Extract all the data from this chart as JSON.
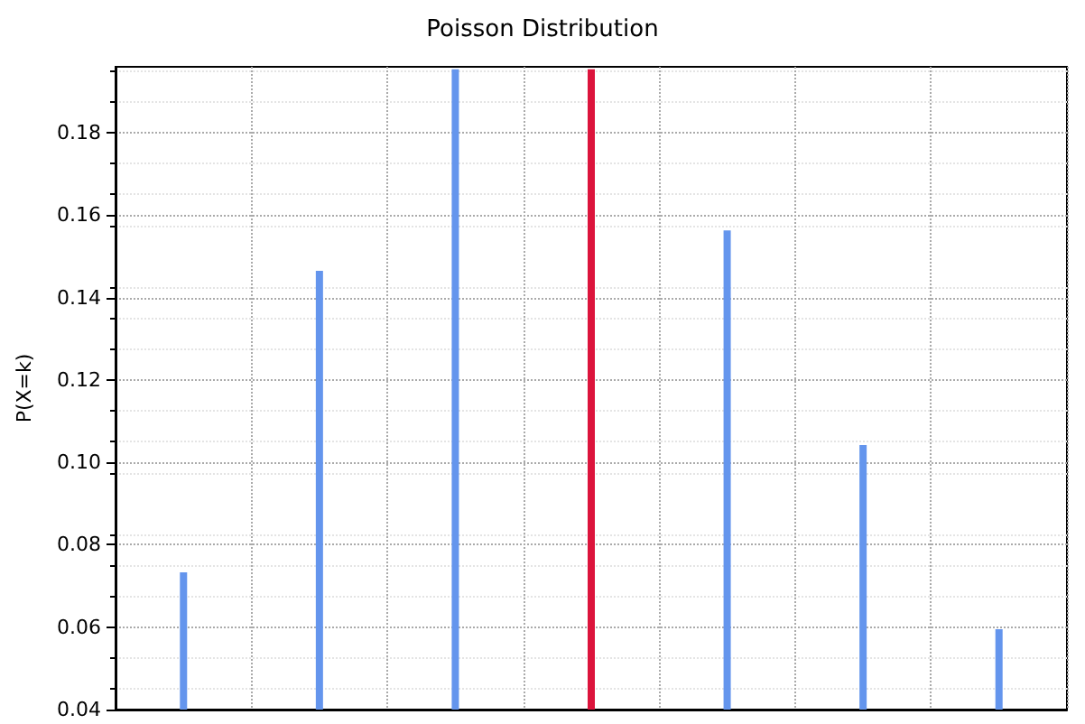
{
  "chart_data": {
    "type": "bar",
    "title": "Poisson Distribution",
    "ylabel": "P(X=k)",
    "categories": [
      null,
      null,
      null,
      null,
      null,
      null,
      null
    ],
    "values": [
      0.0733,
      0.1465,
      0.1954,
      0.1954,
      0.1563,
      0.1042,
      0.0595
    ],
    "colors": [
      "#6495ed",
      "#6495ed",
      "#6495ed",
      "#dc143c",
      "#6495ed",
      "#6495ed",
      "#6495ed"
    ],
    "ylim": [
      0.04,
      0.196
    ],
    "yticks": [
      0.04,
      0.06,
      0.08,
      {
        "value": 0.1,
        "label": "0.10"
      },
      0.12,
      0.14,
      0.16,
      0.18
    ],
    "grid": true,
    "line_style": "dotted"
  }
}
